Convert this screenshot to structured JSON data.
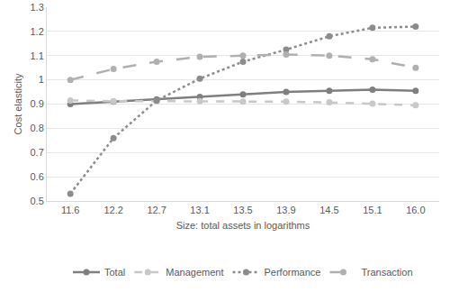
{
  "chart_data": {
    "type": "line",
    "x_label": "Size: total assets in logarithms",
    "y_label": "Cost elasticity",
    "categories": [
      "11.6",
      "12.2",
      "12.7",
      "13.1",
      "13.5",
      "13.9",
      "14.5",
      "15.1",
      "16.0"
    ],
    "series": [
      {
        "name": "Total",
        "color": "#7f7f7f",
        "line_style": "solid",
        "marker": "circle",
        "values": [
          0.9,
          0.91,
          0.92,
          0.93,
          0.94,
          0.95,
          0.955,
          0.96,
          0.955
        ]
      },
      {
        "name": "Management",
        "color": "#c8c8c8",
        "line_style": "dash",
        "marker": "circle",
        "values": [
          0.915,
          0.912,
          0.912,
          0.912,
          0.91,
          0.91,
          0.907,
          0.902,
          0.895
        ]
      },
      {
        "name": "Performance",
        "color": "#8c8c8c",
        "line_style": "dot",
        "marker": "circle",
        "values": [
          0.53,
          0.76,
          0.915,
          1.005,
          1.075,
          1.125,
          1.18,
          1.215,
          1.22
        ]
      },
      {
        "name": "Transaction",
        "color": "#b0b0b0",
        "line_style": "longdash",
        "marker": "circle",
        "values": [
          1.0,
          1.045,
          1.075,
          1.095,
          1.1,
          1.105,
          1.1,
          1.085,
          1.05
        ]
      }
    ],
    "ylim": [
      0.5,
      1.3
    ],
    "yticks": [
      0.5,
      0.6,
      0.7,
      0.8,
      0.9,
      1,
      1.1,
      1.2,
      1.3
    ],
    "grid": true,
    "legend": "bottom"
  }
}
